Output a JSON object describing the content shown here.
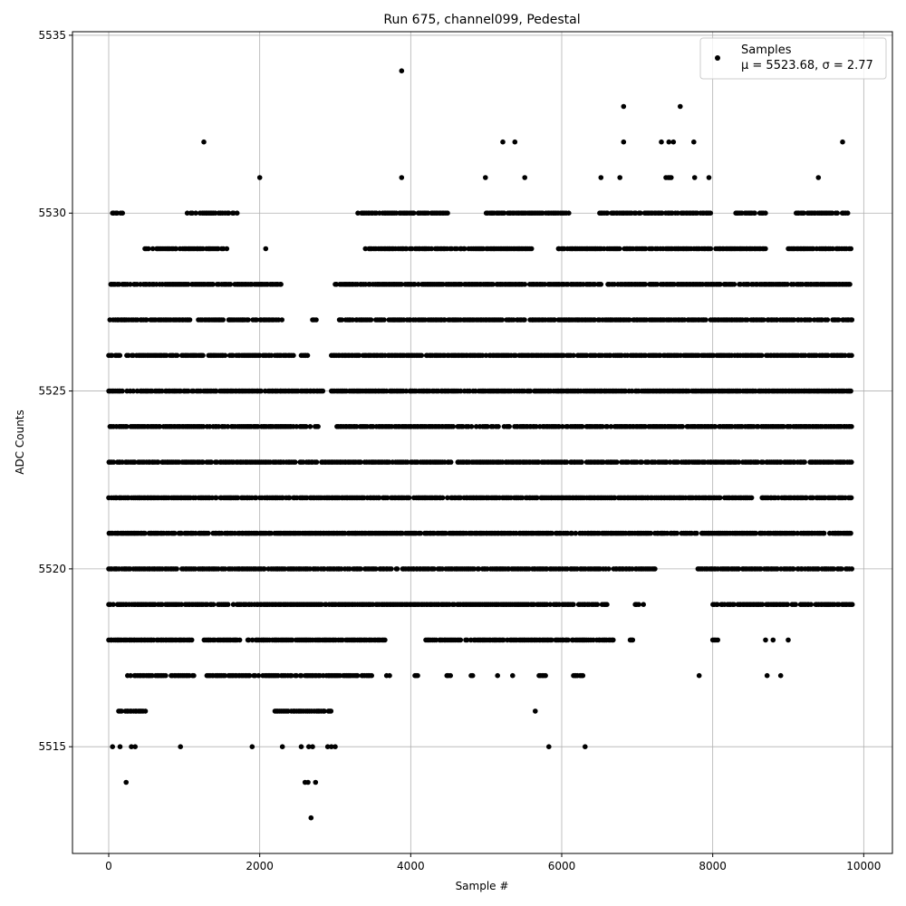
{
  "chart_data": {
    "type": "scatter",
    "title": "Run 675, channel099, Pedestal",
    "xlabel": "Sample #",
    "ylabel": "ADC Counts",
    "xlim": [
      -480,
      10380
    ],
    "ylim": [
      5512.0,
      5535.1
    ],
    "x_ticks": [
      0,
      2000,
      4000,
      6000,
      8000,
      10000
    ],
    "x_tick_labels": [
      "0",
      "2000",
      "4000",
      "6000",
      "8000",
      "10000"
    ],
    "y_ticks": [
      5515,
      5520,
      5525,
      5530,
      5535
    ],
    "y_tick_labels": [
      "5515",
      "5520",
      "5525",
      "5530",
      "5535"
    ],
    "grid": true,
    "legend_position": "top-right",
    "series": [
      {
        "name": "Samples",
        "color": "#000000",
        "marker": "circle",
        "note": "Approximately 10000 integer-valued samples; per-level sample ranges (in sample # units) as read from the plot",
        "levels": [
          {
            "y": 5534,
            "points": [
              3880
            ]
          },
          {
            "y": 5533,
            "points": [
              6820,
              7570
            ]
          },
          {
            "y": 5532,
            "points": [
              1260,
              5220,
              5380,
              6820,
              7320,
              7420,
              7480,
              7750,
              9720
            ]
          },
          {
            "y": 5531,
            "points": [
              2000,
              3880,
              4990,
              5510,
              6520,
              6770,
              7380,
              7410,
              7430,
              7450,
              7760,
              7950,
              9400
            ]
          },
          {
            "y": 5530,
            "ranges": [
              [
                50,
                200
              ],
              [
                1040,
                1700
              ],
              [
                3300,
                4500
              ],
              [
                5000,
                6100
              ],
              [
                6500,
                8000
              ],
              [
                8300,
                8700
              ],
              [
                9100,
                9800
              ]
            ]
          },
          {
            "y": 5529,
            "ranges": [
              [
                480,
                1600
              ],
              [
                2080,
                2080
              ],
              [
                3400,
                5600
              ],
              [
                5950,
                8700
              ],
              [
                9000,
                9850
              ]
            ]
          },
          {
            "y": 5528,
            "ranges": [
              [
                0,
                2300
              ],
              [
                3000,
                9850
              ]
            ]
          },
          {
            "y": 5527,
            "ranges": [
              [
                0,
                2300
              ],
              [
                2700,
                2750
              ],
              [
                3050,
                9850
              ]
            ]
          },
          {
            "y": 5526,
            "ranges": [
              [
                0,
                2450
              ],
              [
                2550,
                2650
              ],
              [
                2950,
                9850
              ]
            ]
          },
          {
            "y": 5525,
            "ranges": [
              [
                0,
                2850
              ],
              [
                2950,
                9850
              ]
            ]
          },
          {
            "y": 5524,
            "ranges": [
              [
                0,
                2800
              ],
              [
                3000,
                9850
              ]
            ]
          },
          {
            "y": 5523,
            "ranges": [
              [
                0,
                9850
              ]
            ]
          },
          {
            "y": 5522,
            "ranges": [
              [
                0,
                8550
              ],
              [
                8650,
                9850
              ]
            ]
          },
          {
            "y": 5521,
            "ranges": [
              [
                0,
                7800
              ],
              [
                7850,
                9850
              ]
            ]
          },
          {
            "y": 5520,
            "ranges": [
              [
                0,
                7250
              ],
              [
                7800,
                9850
              ]
            ]
          },
          {
            "y": 5519,
            "ranges": [
              [
                0,
                6600
              ],
              [
                6950,
                7100
              ],
              [
                8000,
                9850
              ]
            ]
          },
          {
            "y": 5518,
            "ranges": [
              [
                0,
                1100
              ],
              [
                1200,
                3700
              ],
              [
                4200,
                6700
              ],
              [
                6900,
                6950
              ],
              [
                8000,
                8100
              ]
            ],
            "points": [
              8700,
              8800,
              9000
            ]
          },
          {
            "y": 5517,
            "ranges": [
              [
                250,
                1150
              ],
              [
                1300,
                3500
              ],
              [
                4050,
                4100
              ],
              [
                4480,
                4530
              ],
              [
                4800,
                4830
              ],
              [
                5350,
                5350
              ],
              [
                5700,
                5800
              ],
              [
                6150,
                6300
              ]
            ],
            "points": [
              3680,
              3720,
              5150,
              7820,
              8720,
              8900
            ]
          },
          {
            "y": 5516,
            "ranges": [
              [
                130,
                500
              ],
              [
                2200,
                2950
              ]
            ],
            "points": [
              5650
            ]
          },
          {
            "y": 5515,
            "points": [
              50,
              150,
              300,
              350,
              950,
              1900,
              2300,
              2550,
              2650,
              2700,
              2900,
              2950,
              3000,
              5830,
              6310
            ]
          },
          {
            "y": 5514,
            "points": [
              230,
              2600,
              2640,
              2740
            ]
          },
          {
            "y": 5513,
            "points": [
              2680
            ]
          }
        ]
      }
    ],
    "legend": {
      "label": "Samples",
      "stats": "μ = 5523.68, σ = 2.77"
    }
  }
}
